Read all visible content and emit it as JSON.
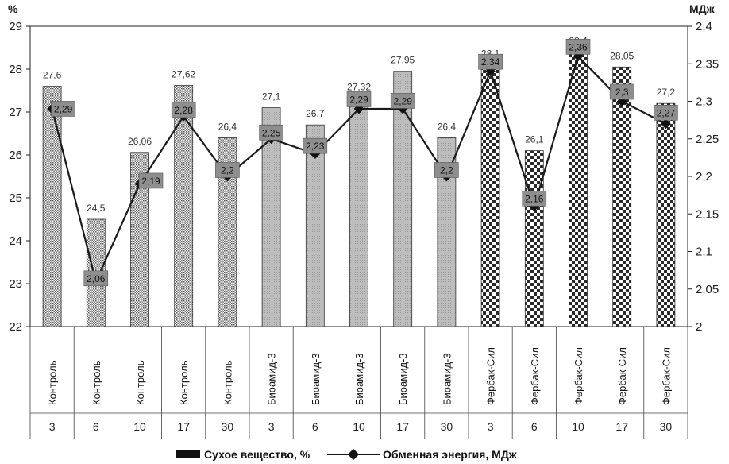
{
  "chart_data": {
    "type": "bar",
    "categories": [
      "Контроль",
      "Контроль",
      "Контроль",
      "Контроль",
      "Контроль",
      "Биоамид-3",
      "Биоамид-3",
      "Биоамид-3",
      "Биоамид-3",
      "Биоамид-3",
      "Фербак-Сил",
      "Фербак-Сил",
      "Фербак-Сил",
      "Фербак-Сил",
      "Фербак-Сил"
    ],
    "days": [
      "3",
      "6",
      "10",
      "17",
      "30",
      "3",
      "6",
      "10",
      "17",
      "30",
      "3",
      "6",
      "10",
      "17",
      "30"
    ],
    "series": [
      {
        "name": "Сухое вещество, %",
        "type": "bar",
        "axis": "left",
        "values": [
          27.6,
          24.5,
          26.06,
          27.62,
          26.4,
          27.1,
          26.7,
          27.32,
          27.95,
          26.4,
          28.1,
          26.1,
          28.4,
          28.05,
          27.2
        ],
        "labels": [
          "27,6",
          "24,5",
          "26,06",
          "27,62",
          "26,4",
          "27,1",
          "26,7",
          "27,32",
          "27,95",
          "26,4",
          "28,1",
          "26,1",
          "28,4",
          "28,05",
          "27,2"
        ]
      },
      {
        "name": "Обменная энергия, МДж",
        "type": "line",
        "axis": "right",
        "values": [
          2.29,
          2.06,
          2.19,
          2.28,
          2.2,
          2.25,
          2.23,
          2.29,
          2.29,
          2.2,
          2.34,
          2.16,
          2.36,
          2.3,
          2.27
        ],
        "labels": [
          "2,29",
          "2,06",
          "2,19",
          "2,28",
          "2,2",
          "2,25",
          "2,23",
          "2,29",
          "2,29",
          "2,2",
          "2,34",
          "2,16",
          "2,36",
          "2,3",
          "2,27"
        ]
      }
    ],
    "y_left": {
      "unit": "%",
      "min": 22,
      "max": 29,
      "ticks": [
        "22",
        "23",
        "24",
        "25",
        "26",
        "27",
        "28",
        "29"
      ]
    },
    "y_right": {
      "unit": "МДж",
      "min": 2,
      "max": 2.4,
      "ticks": [
        "2",
        "2,05",
        "2,1",
        "2,15",
        "2,2",
        "2,25",
        "2,3",
        "2,35",
        "2,4"
      ]
    },
    "colors": {
      "control": "#ffffff",
      "bioamid": "#b0b0b0",
      "ferbak": "#ffffff",
      "line": "#1a1a1a",
      "label_box": "#8a8a8a"
    },
    "legend": {
      "bar_label": "Сухое вещество, %",
      "line_label": "Обменная энергия, МДж"
    }
  }
}
